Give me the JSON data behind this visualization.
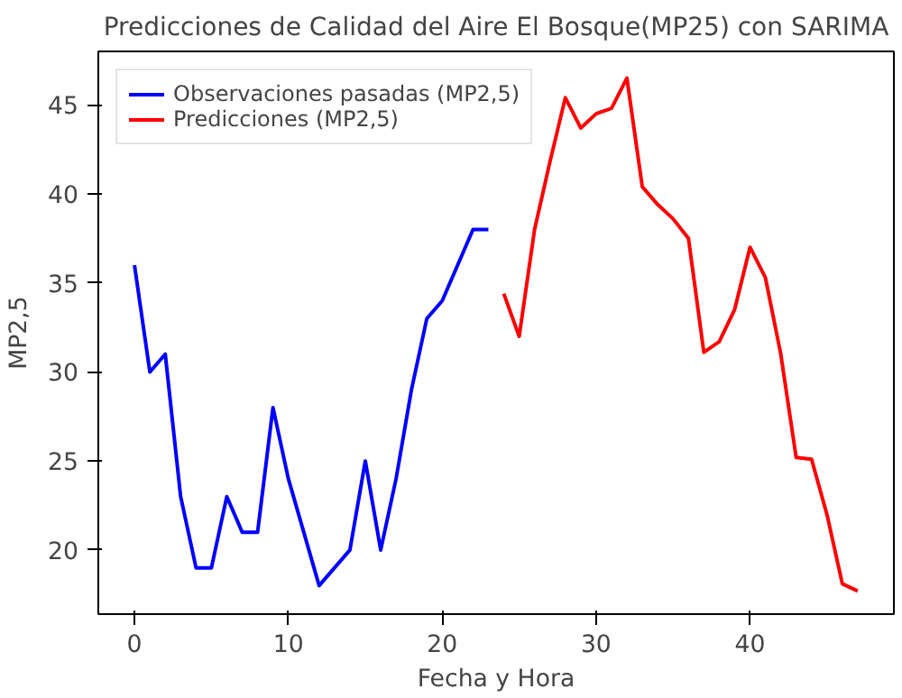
{
  "chart_data": {
    "type": "line",
    "title": "Predicciones de Calidad del Aire El Bosque(MP25) con SARIMA",
    "xlabel": "Fecha y Hora",
    "ylabel": "MP2,5",
    "xlim": [
      -2.35,
      49.35
    ],
    "ylim": [
      16.4,
      48.0
    ],
    "xticks": [
      0,
      10,
      20,
      30,
      40
    ],
    "yticks": [
      20,
      25,
      30,
      35,
      40,
      45
    ],
    "grid": false,
    "legend": "top left",
    "line_style": "solid",
    "marker": "none",
    "series": [
      {
        "name": "Observaciones pasadas (MP2,5)",
        "color": "#0000ff",
        "x": [
          0,
          1,
          2,
          3,
          4,
          5,
          6,
          7,
          8,
          9,
          10,
          11,
          12,
          13,
          14,
          15,
          16,
          17,
          18,
          19,
          20,
          21,
          22,
          23
        ],
        "values": [
          36,
          30,
          31,
          23,
          19,
          19,
          23,
          21,
          21,
          28,
          24,
          21,
          18,
          19,
          20,
          25,
          20,
          24,
          29,
          33,
          34,
          36,
          38,
          38
        ]
      },
      {
        "name": "Predicciones (MP2,5)",
        "color": "#ff0000",
        "x": [
          24,
          25,
          26,
          27,
          28,
          29,
          30,
          31,
          32,
          33,
          34,
          35,
          36,
          37,
          38,
          39,
          40,
          41,
          42,
          43,
          44,
          45,
          46,
          47
        ],
        "values": [
          34.4,
          32,
          38,
          41.8,
          45.4,
          43.7,
          44.5,
          44.8,
          46.5,
          40.4,
          39.4,
          38.6,
          37.5,
          31.1,
          31.7,
          33.5,
          37,
          35.3,
          31,
          25.2,
          25.1,
          22,
          18.1,
          17.7
        ]
      }
    ]
  }
}
